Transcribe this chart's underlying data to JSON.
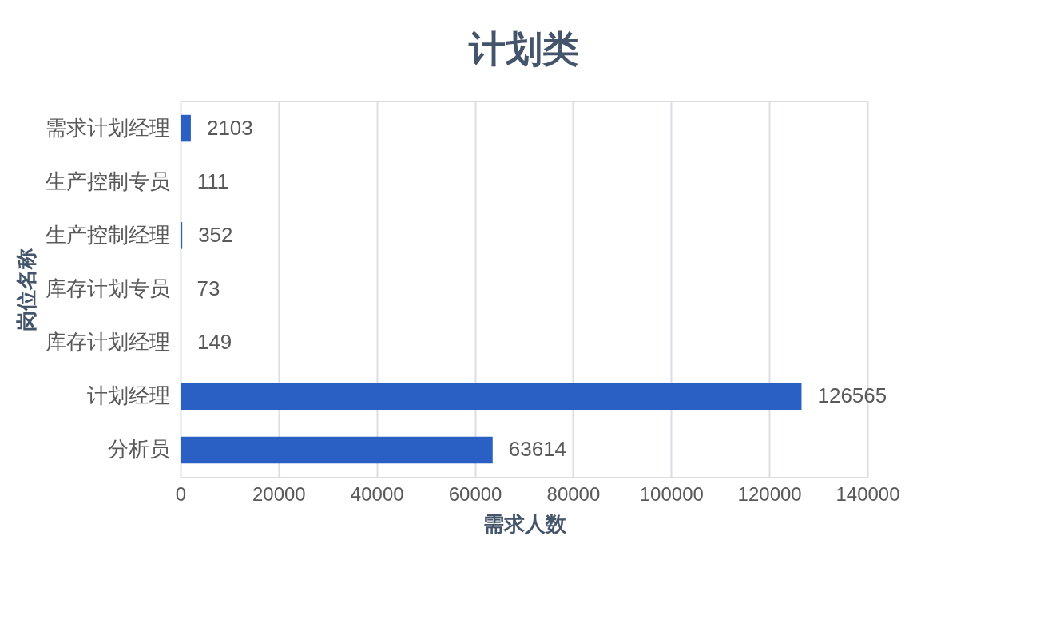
{
  "chart_data": {
    "type": "bar",
    "orientation": "horizontal",
    "title": "计划类",
    "xlabel": "需求人数",
    "ylabel": "岗位名称",
    "categories": [
      "需求计划经理",
      "生产控制专员",
      "生产控制经理",
      "库存计划专员",
      "库存计划经理",
      "计划经理",
      "分析员"
    ],
    "values": [
      2103,
      111,
      352,
      73,
      149,
      126565,
      63614
    ],
    "color": "#2a5fc4",
    "xlim": [
      0,
      140000
    ],
    "xticks": [
      0,
      20000,
      40000,
      60000,
      80000,
      100000,
      120000,
      140000
    ],
    "grid": "x",
    "data_labels": true
  }
}
